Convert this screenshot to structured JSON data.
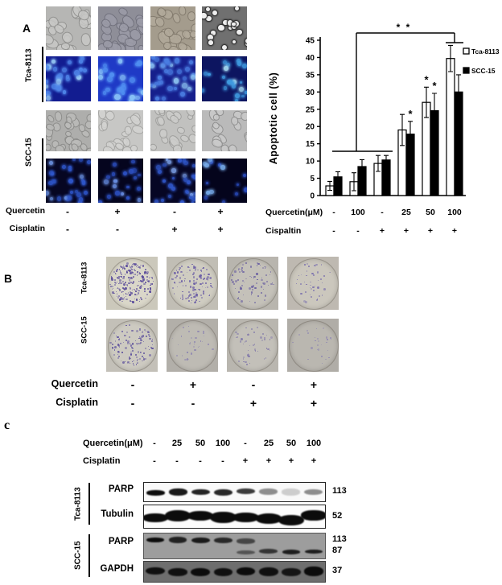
{
  "panelA": {
    "label": "A",
    "cell_lines": [
      "Tca-8113",
      "SCC-15"
    ],
    "treatment_rows": [
      {
        "label": "Quercetin",
        "symbols": [
          "-",
          "+",
          "-",
          "+"
        ]
      },
      {
        "label": "Cisplatin",
        "symbols": [
          "-",
          "-",
          "+",
          "+"
        ]
      }
    ],
    "micrographs": [
      {
        "name": "micrograph-tca8113-brightfield-1",
        "kind": "bf",
        "bg": "#b6b6b4",
        "cell": "#c8c8c6",
        "stroke": "#8e8e8c",
        "n": 24,
        "smin": 6,
        "smax": 11,
        "seed": 3
      },
      {
        "name": "micrograph-tca8113-brightfield-2",
        "kind": "bf",
        "bg": "#8e8e98",
        "cell": "#9c9ca8",
        "stroke": "#6e6e7a",
        "n": 26,
        "smin": 6,
        "smax": 11,
        "seed": 5
      },
      {
        "name": "micrograph-tca8113-brightfield-3",
        "kind": "bf",
        "bg": "#a49c8d",
        "cell": "#b2aa9b",
        "stroke": "#7f776a",
        "n": 24,
        "smin": 6,
        "smax": 11,
        "seed": 7
      },
      {
        "name": "micrograph-tca8113-brightfield-4",
        "kind": "bf-apop",
        "bg": "#707070",
        "cell": "#efefef",
        "stroke": "#383838",
        "n": 20,
        "smin": 4,
        "smax": 8,
        "seed": 9
      },
      {
        "name": "micrograph-tca8113-dapi-1",
        "kind": "dapi",
        "bg": "#121c90",
        "cell": "#4e84e8",
        "bright": "#9cd0f8",
        "n": 30,
        "smin": 4.5,
        "smax": 7.5,
        "seed": 11
      },
      {
        "name": "micrograph-tca8113-dapi-2",
        "kind": "dapi",
        "bg": "#1f3ac6",
        "cell": "#5190f2",
        "bright": "#8ac4f8",
        "n": 24,
        "smin": 4.5,
        "smax": 7.5,
        "seed": 13
      },
      {
        "name": "micrograph-tca8113-dapi-3",
        "kind": "dapi",
        "bg": "#161f8c",
        "cell": "#4a7de2",
        "bright": "#90c8f4",
        "n": 34,
        "smin": 4,
        "smax": 7,
        "seed": 15
      },
      {
        "name": "micrograph-tca8113-dapi-4",
        "kind": "dapi",
        "bg": "#0d1560",
        "cell": "#3f9ae0",
        "bright": "#aee6fa",
        "n": 22,
        "smin": 3.5,
        "smax": 6.5,
        "seed": 17
      },
      {
        "name": "micrograph-scc15-brightfield-1",
        "kind": "bf",
        "bg": "#aeaeac",
        "cell": "#bcbcba",
        "stroke": "#888886",
        "n": 28,
        "smin": 5,
        "smax": 9,
        "seed": 19
      },
      {
        "name": "micrograph-scc15-brightfield-2",
        "kind": "bf",
        "bg": "#c7c7c5",
        "cell": "#d3d3d1",
        "stroke": "#a0a09e",
        "n": 20,
        "smin": 5,
        "smax": 9,
        "seed": 21
      },
      {
        "name": "micrograph-scc15-brightfield-3",
        "kind": "bf",
        "bg": "#c1c1bf",
        "cell": "#cdcdcb",
        "stroke": "#9a9a98",
        "n": 24,
        "smin": 5,
        "smax": 9,
        "seed": 23
      },
      {
        "name": "micrograph-scc15-brightfield-4",
        "kind": "bf",
        "bg": "#bababa",
        "cell": "#cacaca",
        "stroke": "#8a8a8a",
        "n": 16,
        "smin": 5.5,
        "smax": 9.5,
        "seed": 25
      },
      {
        "name": "micrograph-scc15-dapi-1",
        "kind": "dapi",
        "bg": "#060622",
        "cell": "#2e55c8",
        "bright": "#6f97e8",
        "n": 30,
        "smin": 3.5,
        "smax": 6,
        "seed": 27
      },
      {
        "name": "micrograph-scc15-dapi-2",
        "kind": "dapi",
        "bg": "#05051e",
        "cell": "#2c50c2",
        "bright": "#6a90e4",
        "n": 20,
        "smin": 3.5,
        "smax": 6,
        "seed": 29
      },
      {
        "name": "micrograph-scc15-dapi-3",
        "kind": "dapi",
        "bg": "#060624",
        "cell": "#3158cc",
        "bright": "#7fa5ec",
        "n": 30,
        "smin": 3.5,
        "smax": 6,
        "seed": 31
      },
      {
        "name": "micrograph-scc15-dapi-4",
        "kind": "dapi",
        "bg": "#04041c",
        "cell": "#2a4cbe",
        "bright": "#7ab0f0",
        "n": 15,
        "smin": 3.5,
        "smax": 6,
        "seed": 33
      }
    ]
  },
  "chart_data": {
    "type": "bar",
    "title": "",
    "xlabel": "",
    "ylabel": "Apoptotic  cell (%)",
    "ylim": [
      0,
      45
    ],
    "ytick_step": 5,
    "grid": false,
    "legend_position": "right",
    "categories_rows": [
      {
        "label": "Quercetin(μM)",
        "values": [
          "-",
          "100",
          "-",
          "25",
          "50",
          "100"
        ]
      },
      {
        "label": "Cispaltin",
        "values": [
          "-",
          "-",
          "+",
          "+",
          "+",
          "+"
        ]
      }
    ],
    "series": [
      {
        "name": "Tca-8113",
        "fill": "#ffffff",
        "values": [
          2.8,
          4.0,
          9.3,
          19.0,
          27.0,
          39.7
        ],
        "errors": [
          1.3,
          2.6,
          2.3,
          4.5,
          4.4,
          3.8
        ]
      },
      {
        "name": "SCC-15",
        "fill": "#000000",
        "values": [
          5.4,
          8.4,
          10.3,
          17.8,
          24.6,
          30.0
        ],
        "errors": [
          1.5,
          2.0,
          1.3,
          3.7,
          5.0,
          5.0
        ]
      }
    ],
    "bar_stars": [
      {
        "group": 3,
        "series": 1,
        "text": "*"
      },
      {
        "group": 4,
        "series": 0,
        "text": "*"
      },
      {
        "group": 4,
        "series": 1,
        "text": "*"
      }
    ],
    "significance_bracket": {
      "text": "* *"
    }
  },
  "panelB": {
    "label": "B",
    "cell_lines": [
      "Tca-8113",
      "SCC-15"
    ],
    "treatment_rows": [
      {
        "label": "Quercetin",
        "symbols": [
          "-",
          "+",
          "-",
          "+"
        ]
      },
      {
        "label": "Cisplatin",
        "symbols": [
          "-",
          "-",
          "+",
          "+"
        ]
      }
    ],
    "dishes": [
      {
        "name": "colony-dish-tca8113-1",
        "photo": "#cbc8bb",
        "dish": "#dad7c9",
        "colony": "#57489a",
        "n": 220,
        "seed": 41
      },
      {
        "name": "colony-dish-tca8113-2",
        "photo": "#c1beb5",
        "dish": "#cfccc1",
        "colony": "#6c5fa6",
        "n": 120,
        "seed": 43
      },
      {
        "name": "colony-dish-tca8113-3",
        "photo": "#b8b5ae",
        "dish": "#c4c1b9",
        "colony": "#6e64a2",
        "n": 75,
        "seed": 45
      },
      {
        "name": "colony-dish-tca8113-4",
        "photo": "#beb9b1",
        "dish": "#cbc7bd",
        "colony": "#7d73ae",
        "n": 45,
        "seed": 47
      },
      {
        "name": "colony-dish-scc15-1",
        "photo": "#c3c0b8",
        "dish": "#cdcac1",
        "colony": "#60549e",
        "n": 120,
        "seed": 49
      },
      {
        "name": "colony-dish-scc15-2",
        "photo": "#b2afa9",
        "dish": "#bebbb4",
        "colony": "#8a82b0",
        "n": 32,
        "seed": 51
      },
      {
        "name": "colony-dish-scc15-3",
        "photo": "#b9b6af",
        "dish": "#c3c0b9",
        "colony": "#837aaa",
        "n": 45,
        "seed": 53
      },
      {
        "name": "colony-dish-scc15-4",
        "photo": "#b0ada7",
        "dish": "#bab7b0",
        "colony": "#8e86b2",
        "n": 26,
        "seed": 55
      }
    ]
  },
  "panelC": {
    "label": "c",
    "cell_lines": [
      "Tca-8113",
      "SCC-15"
    ],
    "header_rows": [
      {
        "label": "Quercetin(μM)",
        "symbols": [
          "-",
          "25",
          "50",
          "100",
          "-",
          "25",
          "50",
          "100"
        ]
      },
      {
        "label": "Cisplatin",
        "symbols": [
          "-",
          "-",
          "-",
          "-",
          "+",
          "+",
          "+",
          "+"
        ]
      }
    ],
    "blots": [
      {
        "protein": "PARP",
        "mw": [
          "113"
        ],
        "bg": "#f9f9f9",
        "border": "#222222",
        "rows": [
          {
            "y": 0.5,
            "h": 8,
            "jitter": 1,
            "wf": 0.82,
            "lanes": [
              1,
              0.95,
              0.9,
              0.88,
              0.8,
              0.45,
              0.18,
              0.45
            ]
          }
        ]
      },
      {
        "protein": "Tubulin",
        "mw": [
          "52"
        ],
        "bg": "#fcfcfc",
        "border": "#222222",
        "rows": [
          {
            "y": 0.55,
            "h": 13,
            "jitter": 3.5,
            "wf": 1.15,
            "lanes": [
              1,
              1,
              1,
              1,
              1,
              1,
              1,
              1
            ]
          }
        ]
      },
      {
        "protein": "PARP",
        "mw": [
          "113",
          "87"
        ],
        "bg": "#9d9d9d",
        "border": "#555555",
        "rows": [
          {
            "y": 0.28,
            "h": 7,
            "jitter": 0.6,
            "wf": 0.8,
            "lanes": [
              1,
              0.85,
              0.9,
              0.8,
              0.6,
              0,
              0,
              0
            ]
          },
          {
            "y": 0.74,
            "h": 5.5,
            "jitter": 0.6,
            "wf": 0.8,
            "lanes": [
              0,
              0,
              0,
              0,
              0.5,
              0.72,
              0.88,
              0.88
            ]
          }
        ]
      },
      {
        "protein": "GAPDH",
        "mw": [
          "37"
        ],
        "bg": "#6e6e6e",
        "border": "#3a3a3a",
        "rows": [
          {
            "y": 0.5,
            "h": 11,
            "jitter": 1.2,
            "wf": 0.85,
            "lanes": [
              0.95,
              0.95,
              1,
              0.95,
              1,
              0.95,
              0.9,
              1
            ]
          }
        ]
      }
    ]
  }
}
